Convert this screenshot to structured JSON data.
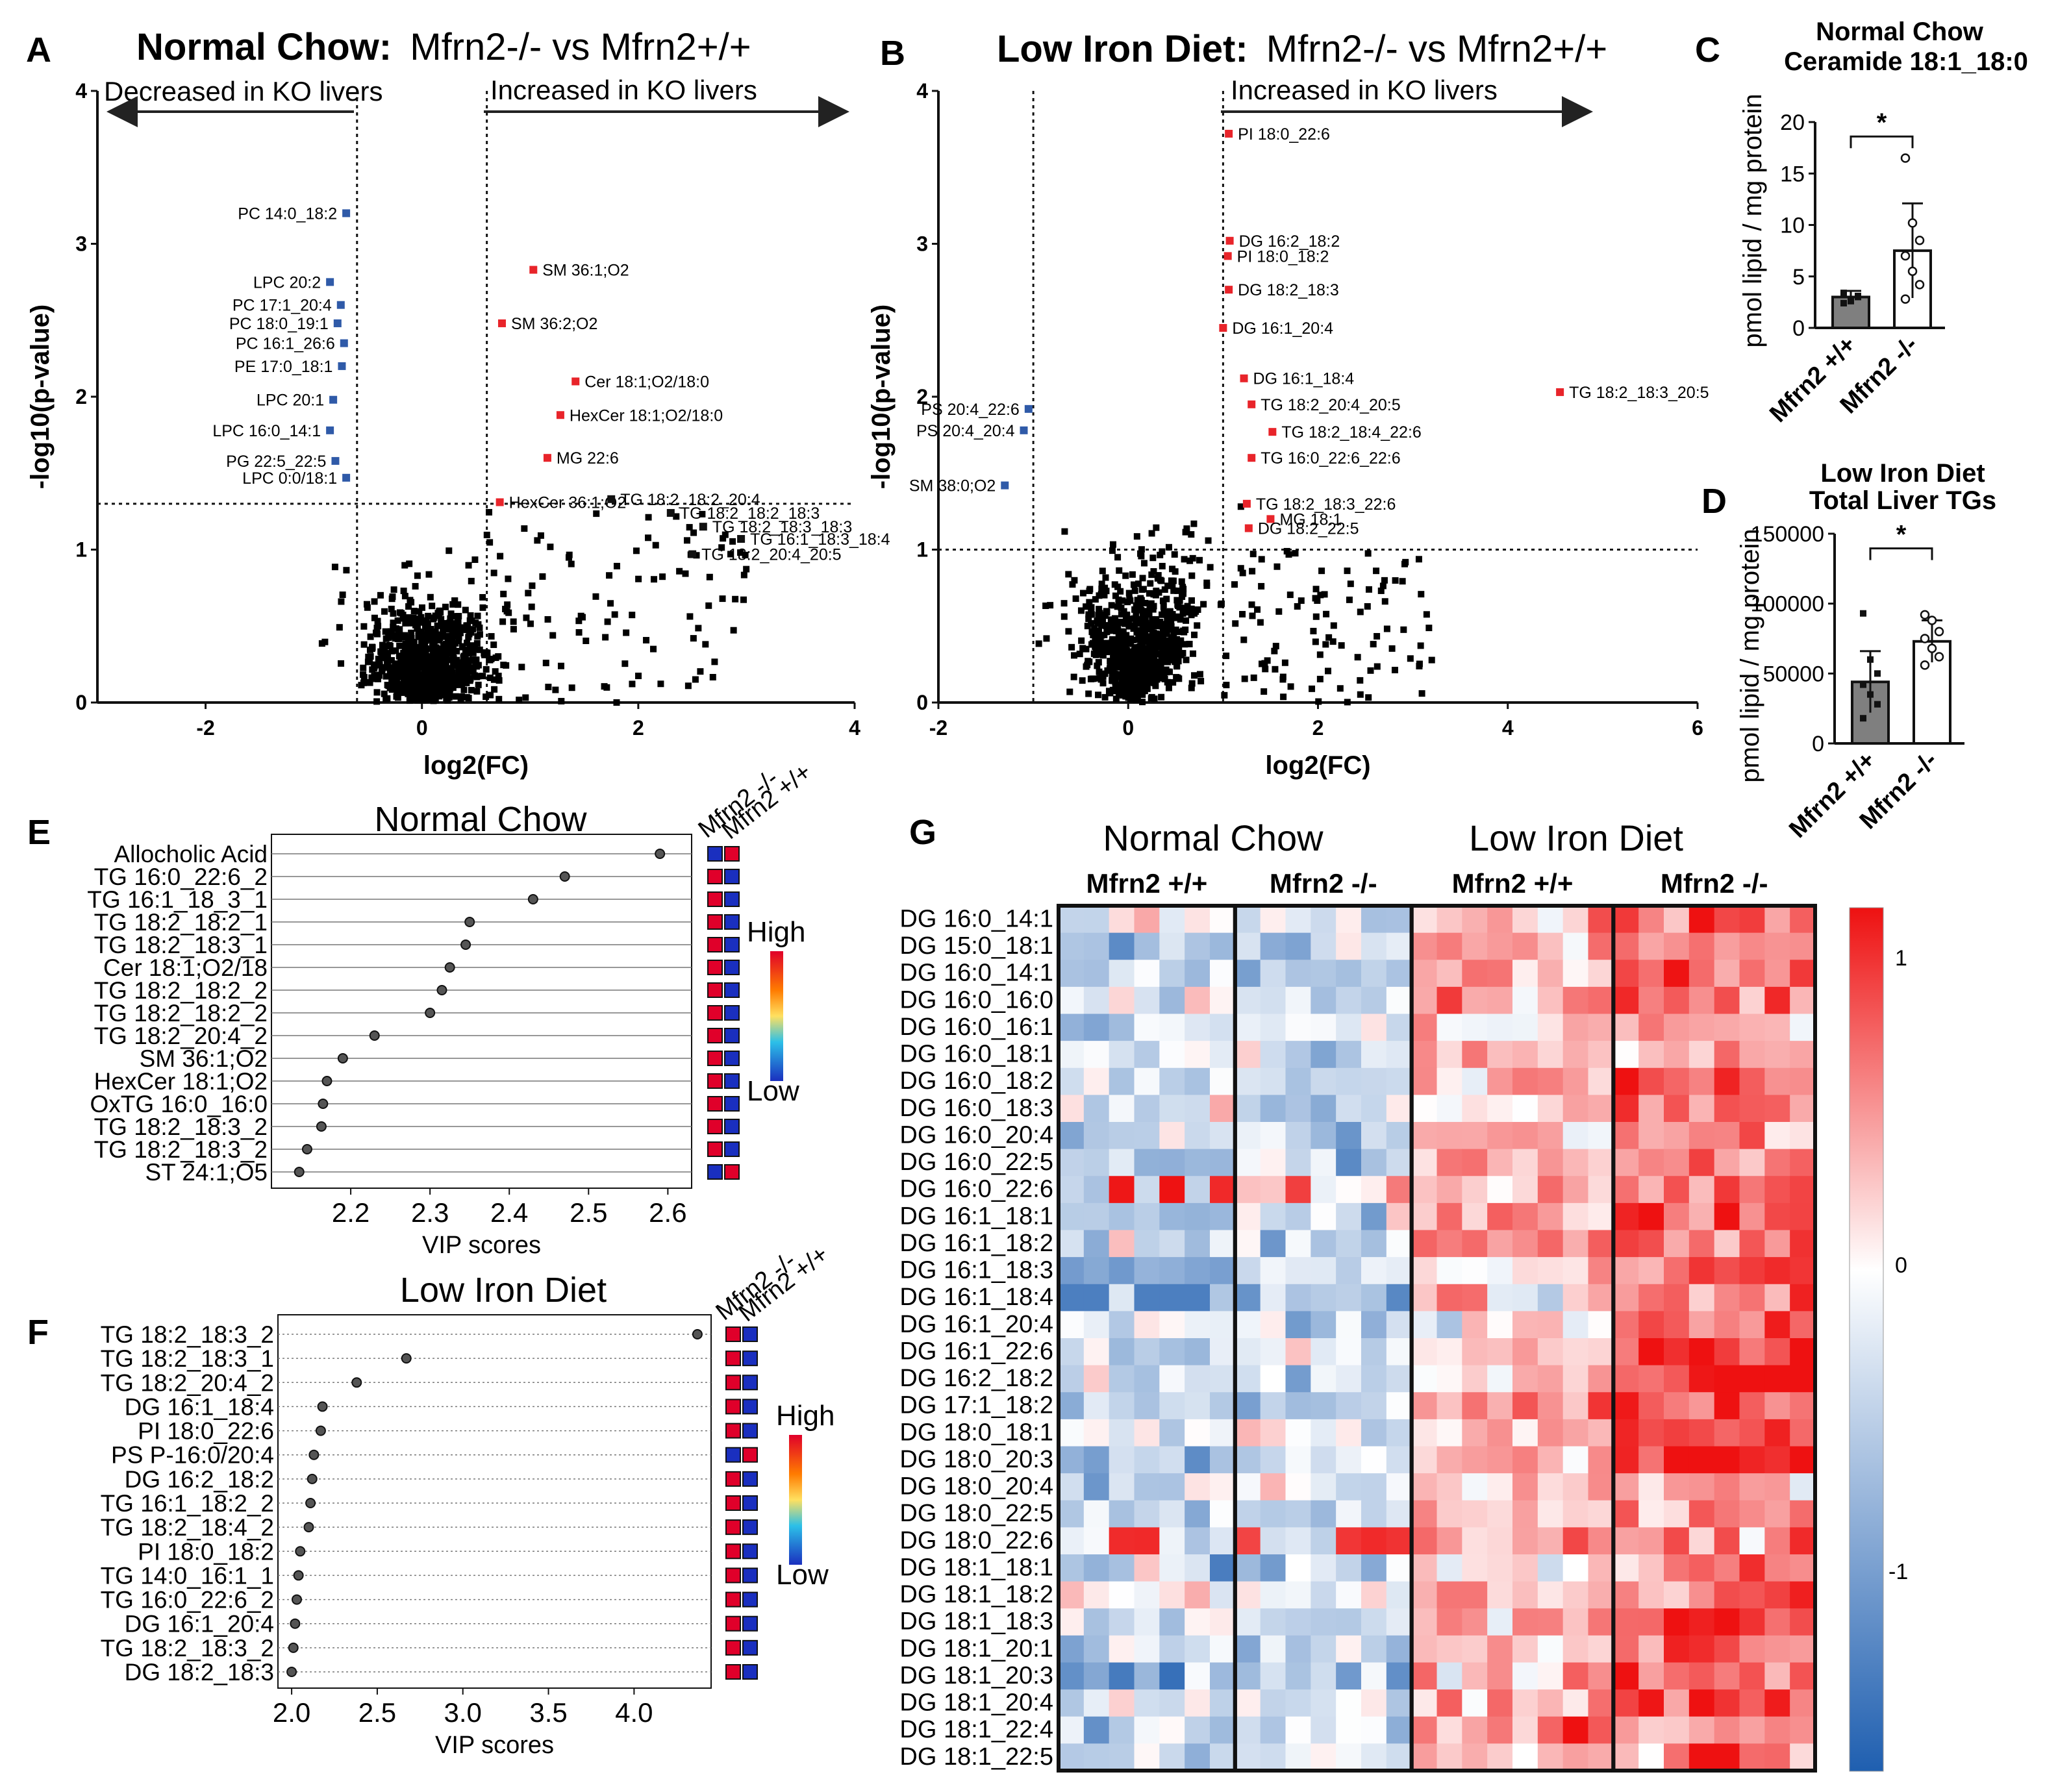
{
  "panelA": {
    "letter": "A",
    "title_bold": "Normal Chow:",
    "title_rest": "Mfrn2-/- vs Mfrn2+/+",
    "arrow_left": "Decreased in KO livers",
    "arrow_right": "Increased in KO livers",
    "chart_data": {
      "type": "scatter",
      "xlabel": "log2(FC)",
      "ylabel": "-log10(p-value)",
      "xlim": [
        -3,
        4
      ],
      "ylim": [
        0,
        4
      ],
      "xticks": [
        "-2",
        "0",
        "2",
        "4"
      ],
      "xtick_vals": [
        -2,
        0,
        2,
        4
      ],
      "yticks": [
        "0",
        "1",
        "2",
        "3",
        "4"
      ],
      "ytick_vals": [
        0,
        1,
        2,
        3,
        4
      ],
      "thresholds": {
        "x": [
          -0.6,
          0.6
        ],
        "y": 1.3
      },
      "labeled_points": [
        {
          "label": "PC 14:0_18:2",
          "x": -0.7,
          "y": 3.2,
          "color": "blue"
        },
        {
          "label": "LPC 20:2",
          "x": -0.85,
          "y": 2.75,
          "color": "blue"
        },
        {
          "label": "PC 17:1_20:4",
          "x": -0.75,
          "y": 2.6,
          "color": "blue"
        },
        {
          "label": "PC 18:0_19:1",
          "x": -0.78,
          "y": 2.48,
          "color": "blue"
        },
        {
          "label": "PC 16:1_26:6",
          "x": -0.72,
          "y": 2.35,
          "color": "blue"
        },
        {
          "label": "PE 17:0_18:1",
          "x": -0.74,
          "y": 2.2,
          "color": "blue"
        },
        {
          "label": "LPC 20:1",
          "x": -0.82,
          "y": 1.98,
          "color": "blue"
        },
        {
          "label": "LPC 16:0_14:1",
          "x": -0.85,
          "y": 1.78,
          "color": "blue"
        },
        {
          "label": "PG 22:5_22:5",
          "x": -0.8,
          "y": 1.58,
          "color": "blue"
        },
        {
          "label": "LPC 0:0/18:1",
          "x": -0.7,
          "y": 1.47,
          "color": "blue"
        },
        {
          "label": "SM 36:1;O2",
          "x": 1.03,
          "y": 2.83,
          "color": "red"
        },
        {
          "label": "SM 36:2;O2",
          "x": 0.74,
          "y": 2.48,
          "color": "red"
        },
        {
          "label": "Cer 18:1;O2/18:0",
          "x": 1.42,
          "y": 2.1,
          "color": "red"
        },
        {
          "label": "HexCer 18:1;O2/18:0",
          "x": 1.28,
          "y": 1.88,
          "color": "red"
        },
        {
          "label": "MG 22:6",
          "x": 1.16,
          "y": 1.6,
          "color": "red"
        },
        {
          "label": "HexCer 36:1;O2",
          "x": 0.72,
          "y": 1.31,
          "color": "red"
        },
        {
          "label": "TG 18:2_18:2_20:4",
          "x": 1.75,
          "y": 1.33,
          "color": "black"
        },
        {
          "label": "TG 18:2_18:2_18:3",
          "x": 2.3,
          "y": 1.24,
          "color": "black"
        },
        {
          "label": "TG 18:2_18:3_18:3",
          "x": 2.6,
          "y": 1.15,
          "color": "black"
        },
        {
          "label": "TG 16:1_18:3_18:4",
          "x": 2.95,
          "y": 1.07,
          "color": "black"
        },
        {
          "label": "TG 18:2_20:4_20:5",
          "x": 2.5,
          "y": 0.97,
          "color": "black"
        }
      ]
    }
  },
  "panelB": {
    "letter": "B",
    "title_bold": "Low Iron Diet:",
    "title_rest": "Mfrn2-/- vs Mfrn2+/+",
    "arrow_right": "Increased in KO livers",
    "chart_data": {
      "type": "scatter",
      "xlabel": "log2(FC)",
      "ylabel": "-log10(p-value)",
      "xlim": [
        -2,
        6
      ],
      "ylim": [
        0,
        4
      ],
      "xticks": [
        "-2",
        "0",
        "2",
        "4",
        "6"
      ],
      "xtick_vals": [
        -2,
        0,
        2,
        4,
        6
      ],
      "yticks": [
        "0",
        "1",
        "2",
        "3",
        "4"
      ],
      "ytick_vals": [
        0,
        1,
        2,
        3,
        4
      ],
      "thresholds": {
        "x": [
          -1,
          1
        ],
        "y": 1
      },
      "labeled_points": [
        {
          "label": "PI 18:0_22:6",
          "x": 1.06,
          "y": 3.72,
          "color": "red"
        },
        {
          "label": "DG 16:2_18:2",
          "x": 1.07,
          "y": 3.02,
          "color": "red"
        },
        {
          "label": "PI 18:0_18:2",
          "x": 1.05,
          "y": 2.92,
          "color": "red"
        },
        {
          "label": "DG 18:2_18:3",
          "x": 1.06,
          "y": 2.7,
          "color": "red"
        },
        {
          "label": "DG 16:1_20:4",
          "x": 1.0,
          "y": 2.45,
          "color": "red"
        },
        {
          "label": "DG 16:1_18:4",
          "x": 1.22,
          "y": 2.12,
          "color": "red"
        },
        {
          "label": "TG 18:2_20:4_20:5",
          "x": 1.3,
          "y": 1.95,
          "color": "red"
        },
        {
          "label": "TG 18:2_18:4_22:6",
          "x": 1.52,
          "y": 1.77,
          "color": "red"
        },
        {
          "label": "TG 16:0_22:6_22:6",
          "x": 1.3,
          "y": 1.6,
          "color": "red"
        },
        {
          "label": "TG 18:2_18:3_22:6",
          "x": 1.25,
          "y": 1.3,
          "color": "red"
        },
        {
          "label": "MG 18:1",
          "x": 1.5,
          "y": 1.2,
          "color": "red"
        },
        {
          "label": "DG 18:2_22:5",
          "x": 1.27,
          "y": 1.14,
          "color": "red"
        },
        {
          "label": "TG 18:2_18:3_20:5",
          "x": 4.55,
          "y": 2.03,
          "color": "red"
        },
        {
          "label": "PS 20:4_22:6",
          "x": -1.05,
          "y": 1.92,
          "color": "blue"
        },
        {
          "label": "PS 20:4_20:4",
          "x": -1.1,
          "y": 1.78,
          "color": "blue"
        },
        {
          "label": "SM 38:0;O2",
          "x": -1.3,
          "y": 1.42,
          "color": "blue"
        }
      ]
    }
  },
  "panelC": {
    "letter": "C",
    "title_line1": "Normal Chow",
    "title_line2": "Ceramide 18:1_18:0",
    "significance": "*",
    "chart_data": {
      "type": "bar",
      "categories": [
        "Mfrn2 +/+",
        "Mfrn2 -/-"
      ],
      "values": [
        3.0,
        7.5
      ],
      "sd": [
        0.6,
        4.6
      ],
      "ylabel": "pmol lipid / mg protein",
      "ylim": [
        0,
        20
      ],
      "yticks": [
        "0",
        "5",
        "10",
        "15",
        "20"
      ],
      "ytick_vals": [
        0,
        5,
        10,
        15,
        20
      ],
      "points": [
        [
          2.4,
          2.8,
          3.1,
          3.4,
          2.6,
          3.0,
          3.3
        ],
        [
          16.5,
          10.2,
          8.5,
          7.0,
          5.5,
          4.2,
          2.8
        ]
      ]
    }
  },
  "panelD": {
    "letter": "D",
    "title_line1": "Low Iron Diet",
    "title_line2": "Total Liver TGs",
    "significance": "*",
    "chart_data": {
      "type": "bar",
      "categories": [
        "Mfrn2 +/+",
        "Mfrn2 -/-"
      ],
      "values": [
        44000,
        73000
      ],
      "sd": [
        22000,
        15000
      ],
      "ylabel": "pmol lipid / mg protein",
      "ylim": [
        0,
        150000
      ],
      "yticks": [
        "0",
        "50000",
        "100000",
        "150000"
      ],
      "ytick_vals": [
        0,
        50000,
        100000,
        150000
      ],
      "points": [
        [
          93000,
          60000,
          50000,
          42000,
          35000,
          28000,
          18000
        ],
        [
          92000,
          88000,
          80000,
          75000,
          68000,
          62000,
          56000
        ]
      ]
    }
  },
  "panelE": {
    "letter": "E",
    "title": "Normal Chow",
    "legend_cols": [
      "Mfrn2 -/-",
      "Mfrn2 +/+"
    ],
    "legend_high": "High",
    "legend_low": "Low",
    "chart_data": {
      "type": "scatter",
      "xlabel": "VIP scores",
      "xlim": [
        2.1,
        2.63
      ],
      "xticks": [
        "2.2",
        "2.3",
        "2.4",
        "2.5",
        "2.6"
      ],
      "xtick_vals": [
        2.2,
        2.3,
        2.4,
        2.5,
        2.6
      ],
      "features": [
        "Allocholic Acid",
        "TG 16:0_22:6_2",
        "TG 16:1_18_3_1",
        "TG 18:2_18:2_1",
        "TG 18:2_18:3_1",
        "Cer 18:1;O2/18",
        "TG 18:2_18:2_2",
        "TG 18:2_18:2_2",
        "TG 18:2_20:4_2",
        "SM 36:1;O2",
        "HexCer 18:1;O2",
        "OxTG 16:0_16:0",
        "TG 18:2_18:3_2",
        "TG 18:2_18:3_2",
        "ST 24:1;O5"
      ],
      "values": [
        2.59,
        2.47,
        2.43,
        2.35,
        2.345,
        2.325,
        2.315,
        2.3,
        2.23,
        2.19,
        2.17,
        2.165,
        2.163,
        2.145,
        2.135
      ],
      "ko_high": [
        false,
        true,
        true,
        true,
        true,
        true,
        true,
        true,
        true,
        true,
        true,
        true,
        true,
        true,
        false
      ]
    }
  },
  "panelF": {
    "letter": "F",
    "title": "Low Iron Diet",
    "legend_cols": [
      "Mfrn2 -/-",
      "Mfrn2 +/+"
    ],
    "legend_high": "High",
    "legend_low": "Low",
    "chart_data": {
      "type": "scatter",
      "xlabel": "VIP scores",
      "xlim": [
        1.92,
        4.45
      ],
      "xticks": [
        "2.0",
        "2.5",
        "3.0",
        "3.5",
        "4.0"
      ],
      "xtick_vals": [
        2.0,
        2.5,
        3.0,
        3.5,
        4.0
      ],
      "features": [
        "TG 18:2_18:3_2",
        "TG 18:2_18:3_1",
        "TG 18:2_20:4_2",
        "DG 16:1_18:4",
        "PI 18:0_22:6",
        "PS P-16:0/20:4",
        "DG 16:2_18:2",
        "TG 16:1_18:2_2",
        "TG 18:2_18:4_2",
        "PI 18:0_18:2",
        "TG 14:0_16:1_1",
        "TG 16:0_22:6_2",
        "DG 16:1_20:4",
        "TG 18:2_18:3_2",
        "DG 18:2_18:3"
      ],
      "values": [
        4.37,
        2.67,
        2.38,
        2.18,
        2.17,
        2.13,
        2.12,
        2.11,
        2.1,
        2.05,
        2.04,
        2.03,
        2.02,
        2.01,
        2.0
      ],
      "ko_high": [
        true,
        true,
        true,
        true,
        true,
        false,
        true,
        true,
        true,
        true,
        true,
        true,
        true,
        true,
        true
      ]
    }
  },
  "panelG": {
    "letter": "G",
    "group_titles": [
      "Normal Chow",
      "Low Iron Diet"
    ],
    "subgroup_titles": [
      "Mfrn2 +/+",
      "Mfrn2 -/-",
      "Mfrn2 +/+",
      "Mfrn2 -/-"
    ],
    "colorbar_ticks": [
      "1",
      "0",
      "-1"
    ],
    "chart_data": {
      "type": "heatmap",
      "rows": [
        "DG 16:0_14:1",
        "DG 15:0_18:1",
        "DG 16:0_14:1",
        "DG 16:0_16:0",
        "DG 16:0_16:1",
        "DG 16:0_18:1",
        "DG 16:0_18:2",
        "DG 16:0_18:3",
        "DG 16:0_20:4",
        "DG 16:0_22:5",
        "DG 16:0_22:6",
        "DG 16:1_18:1",
        "DG 16:1_18:2",
        "DG 16:1_18:3",
        "DG 16:1_18:4",
        "DG 16:1_20:4",
        "DG 16:1_22:6",
        "DG 16:2_18:2",
        "DG 17:1_18:2",
        "DG 18:0_18:1",
        "DG 18:0_20:3",
        "DG 18:0_20:4",
        "DG 18:0_22:5",
        "DG 18:0_22:6",
        "DG 18:1_18:1",
        "DG 18:1_18:2",
        "DG 18:1_18:3",
        "DG 18:1_20:1",
        "DG 18:1_20:3",
        "DG 18:1_20:4",
        "DG 18:1_22:4",
        "DG 18:1_22:5"
      ],
      "group_columns": [
        7,
        7,
        8,
        8
      ],
      "group_mean": [
        -0.35,
        -0.3,
        0.3,
        0.7
      ],
      "color_range": [
        -1.5,
        1.2
      ]
    }
  }
}
